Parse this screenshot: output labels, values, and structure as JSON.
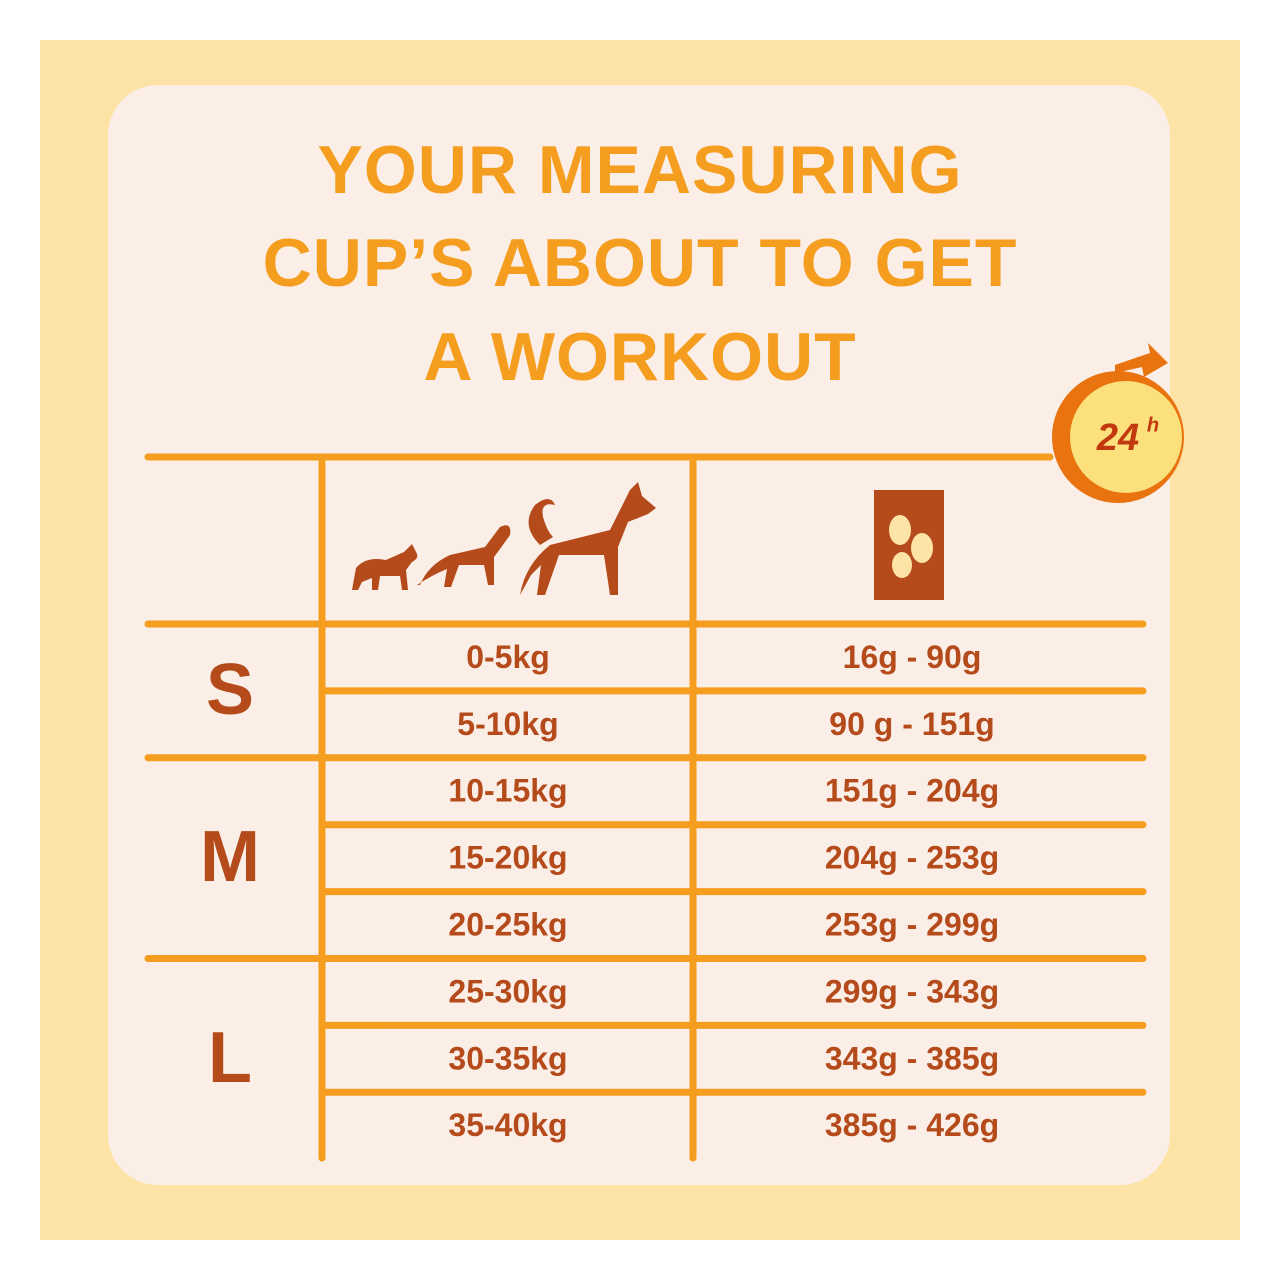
{
  "title_lines": [
    "YOUR MEASURING",
    "CUP’S ABOUT TO GET",
    "A WORKOUT"
  ],
  "badge": {
    "number": "24",
    "unit": "h"
  },
  "table": {
    "groups": [
      {
        "size": "S",
        "rows": [
          [
            "0-5kg",
            "16g - 90g"
          ],
          [
            "5-10kg",
            "90 g - 151g"
          ]
        ]
      },
      {
        "size": "M",
        "rows": [
          [
            "10-15kg",
            "151g - 204g"
          ],
          [
            "15-20kg",
            "204g - 253g"
          ],
          [
            "20-25kg",
            "253g - 299g"
          ]
        ]
      },
      {
        "size": "L",
        "rows": [
          [
            "25-30kg",
            "299g - 343g"
          ],
          [
            "30-35kg",
            "343g - 385g"
          ],
          [
            "35-40kg",
            "385g - 426g"
          ]
        ]
      }
    ]
  }
}
